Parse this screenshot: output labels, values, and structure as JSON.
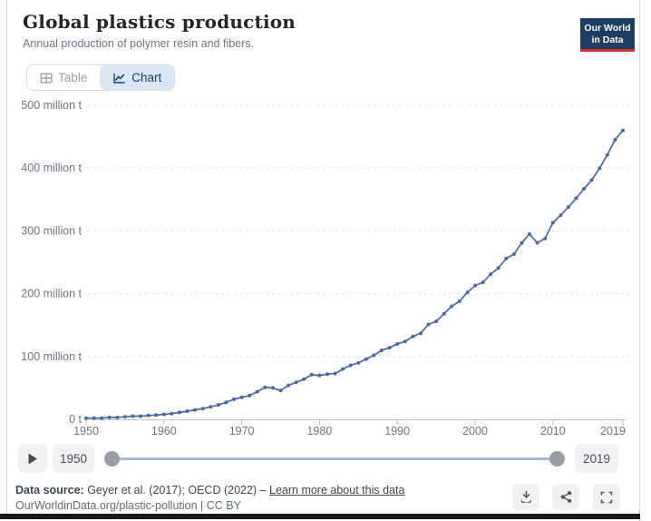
{
  "header": {
    "title": "Global plastics production",
    "subtitle": "Annual production of polymer resin and fibers.",
    "logo": {
      "line1": "Our World",
      "line2": "in Data"
    }
  },
  "tabs": {
    "table_label": "Table",
    "chart_label": "Chart",
    "active": "Chart"
  },
  "chart_data": {
    "type": "line",
    "title": "Global plastics production",
    "subtitle": "Annual production of polymer resin and fibers.",
    "unit": "million t",
    "line_color": "#4c6a9c",
    "grid": "horizontal-dashed",
    "xlim": [
      1950,
      2019
    ],
    "ylim": [
      0,
      500
    ],
    "xticks": [
      1950,
      1960,
      1970,
      1980,
      1990,
      2000,
      2010,
      2019
    ],
    "yticks": [
      0,
      100,
      200,
      300,
      400,
      500
    ],
    "ytick_labels": [
      "0 t",
      "100 million t",
      "200 million t",
      "300 million t",
      "400 million t",
      "500 million t"
    ],
    "years": [
      1950,
      1951,
      1952,
      1953,
      1954,
      1955,
      1956,
      1957,
      1958,
      1959,
      1960,
      1961,
      1962,
      1963,
      1964,
      1965,
      1966,
      1967,
      1968,
      1969,
      1970,
      1971,
      1972,
      1973,
      1974,
      1975,
      1976,
      1977,
      1978,
      1979,
      1980,
      1981,
      1982,
      1983,
      1984,
      1985,
      1986,
      1987,
      1988,
      1989,
      1990,
      1991,
      1992,
      1993,
      1994,
      1995,
      1996,
      1997,
      1998,
      1999,
      2000,
      2001,
      2002,
      2003,
      2004,
      2005,
      2006,
      2007,
      2008,
      2009,
      2010,
      2011,
      2012,
      2013,
      2014,
      2015,
      2016,
      2017,
      2018,
      2019
    ],
    "values": [
      2,
      2,
      2,
      3,
      3,
      4,
      5,
      5,
      6,
      7,
      8,
      9,
      11,
      13,
      15,
      17,
      20,
      23,
      27,
      32,
      35,
      38,
      44,
      51,
      50,
      46,
      54,
      59,
      64,
      71,
      70,
      72,
      73,
      80,
      86,
      90,
      96,
      102,
      110,
      114,
      120,
      124,
      132,
      137,
      151,
      156,
      168,
      180,
      188,
      202,
      213,
      218,
      231,
      241,
      256,
      263,
      281,
      295,
      281,
      288,
      313,
      325,
      338,
      352,
      367,
      381,
      400,
      421,
      445,
      460
    ]
  },
  "timeline": {
    "start_year": "1950",
    "end_year": "2019"
  },
  "footer": {
    "source_label": "Data source:",
    "source_text": " Geyer et al. (2017); OECD (2022) – ",
    "learn_more": "Learn more about this data",
    "citation": "OurWorldinData.org/plastic-pollution | CC BY"
  },
  "colors": {
    "accent_blue": "#4c6a9c",
    "logo_navy": "#1d3d63",
    "logo_red": "#d0342c",
    "active_tab_bg": "#d9e6f4"
  }
}
